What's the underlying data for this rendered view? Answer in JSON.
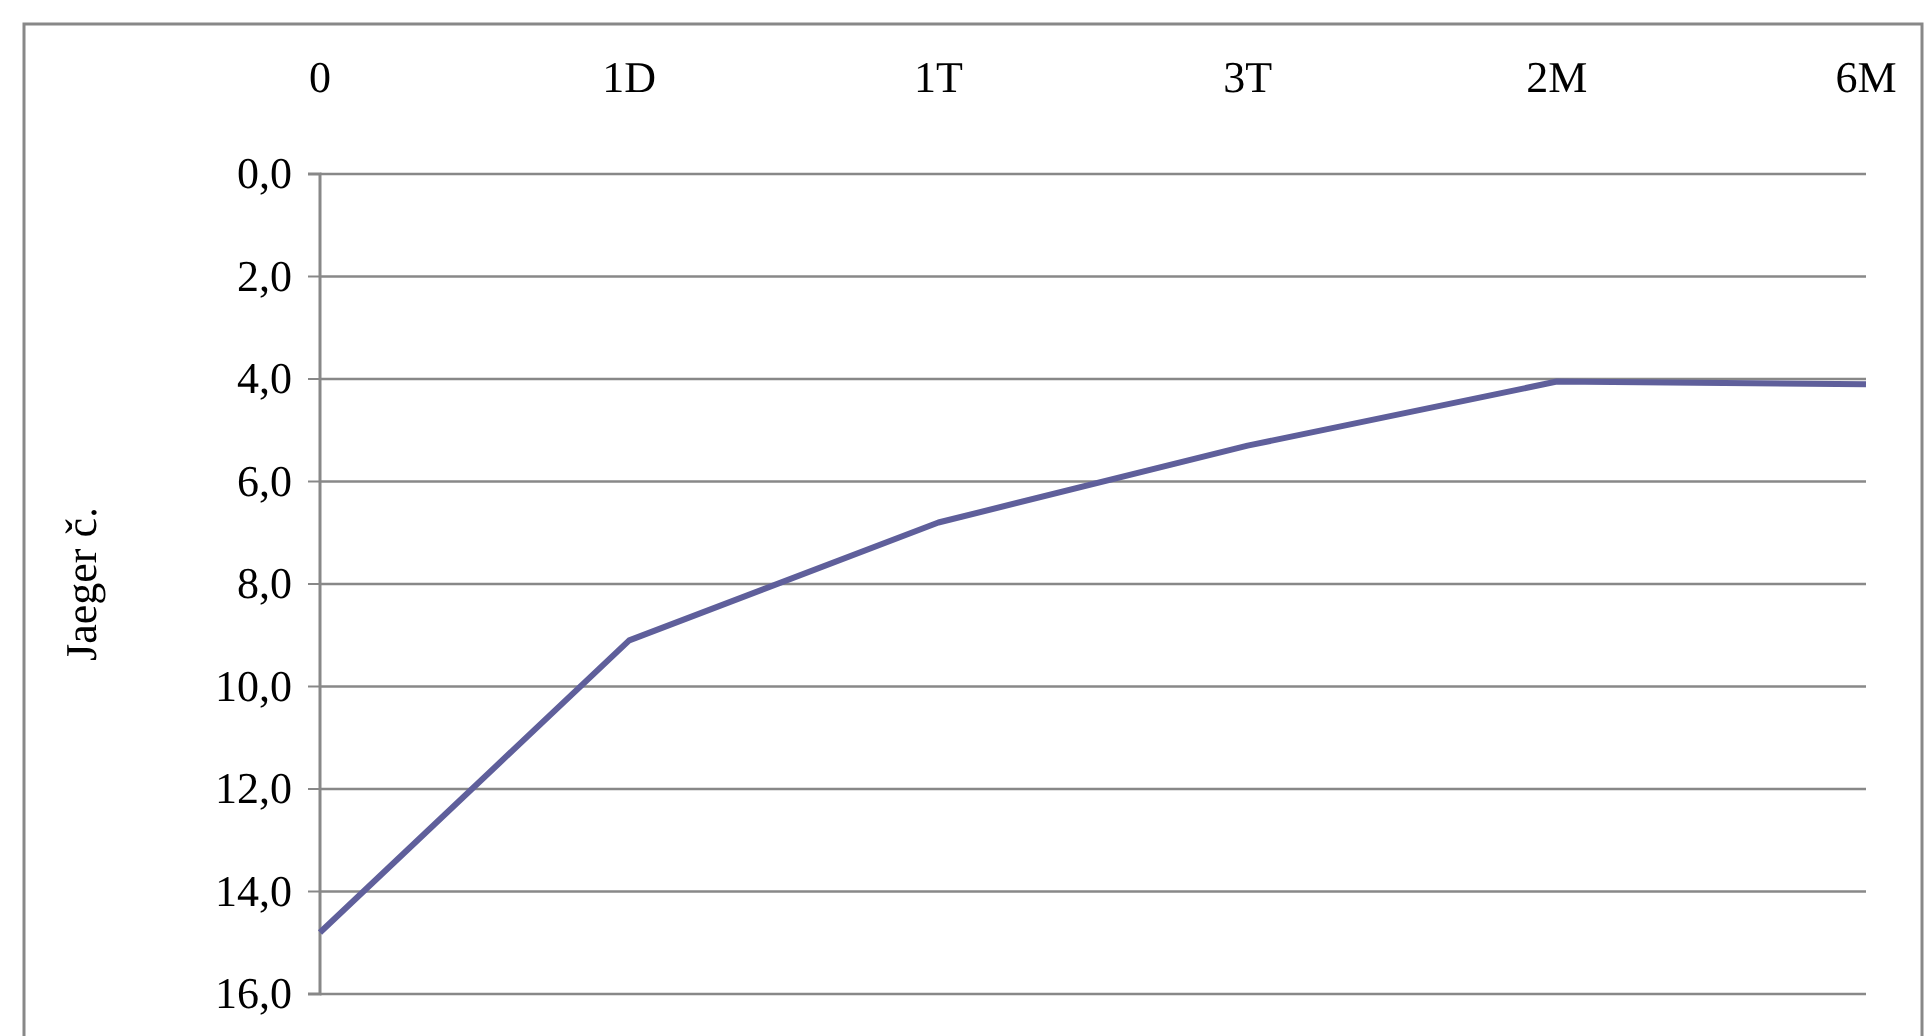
{
  "chart_data": {
    "type": "line",
    "ylabel": "Jaeger č.",
    "categories": [
      "0",
      "1D",
      "1T",
      "3T",
      "2M",
      "6M"
    ],
    "series": [
      {
        "color": "#5f5f9b",
        "values": [
          14.8,
          9.1,
          6.8,
          5.3,
          4.05,
          4.1
        ]
      }
    ],
    "ylim": [
      16,
      0
    ],
    "yticks": [
      {
        "value": 0,
        "label": "0,0"
      },
      {
        "value": 2,
        "label": "2,0"
      },
      {
        "value": 4,
        "label": "4,0"
      },
      {
        "value": 6,
        "label": "6,0"
      },
      {
        "value": 8,
        "label": "8,0"
      },
      {
        "value": 10,
        "label": "10,0"
      },
      {
        "value": 12,
        "label": "12,0"
      },
      {
        "value": 14,
        "label": "14,0"
      },
      {
        "value": 16,
        "label": "16,0"
      }
    ],
    "grid": "y",
    "marker": "none",
    "line_style": "solid"
  }
}
